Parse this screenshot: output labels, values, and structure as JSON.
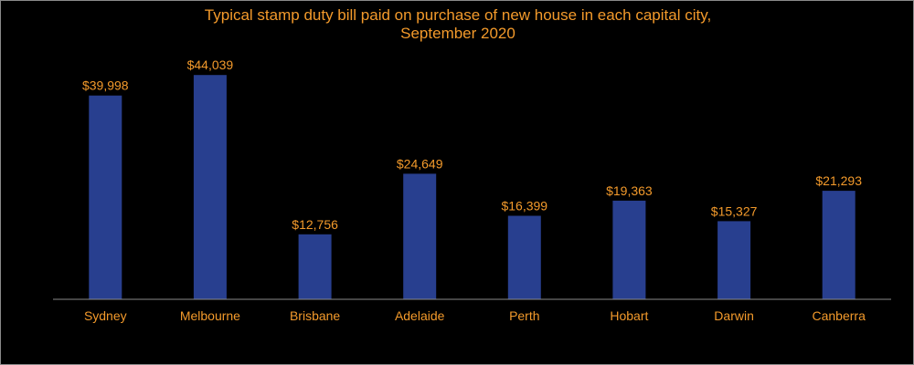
{
  "chart_data": {
    "type": "bar",
    "title_line1": "Typical stamp duty bill paid on purchase of new house in each capital city,",
    "title_line2": "September 2020",
    "categories": [
      "Sydney",
      "Melbourne",
      "Brisbane",
      "Adelaide",
      "Perth",
      "Hobart",
      "Darwin",
      "Canberra"
    ],
    "values": [
      39998,
      44039,
      12756,
      24649,
      16399,
      19363,
      15327,
      21293
    ],
    "data_labels": [
      "$39,998",
      "$44,039",
      "$12,756",
      "$24,649",
      "$16,399",
      "$19,363",
      "$15,327",
      "$21,293"
    ],
    "xlabel": "",
    "ylabel": "",
    "ylim": [
      0,
      45500
    ],
    "grid": false,
    "legend": "none",
    "colors": {
      "bar": "#283f8f",
      "text": "#f39a2b",
      "axis": "#8a8a8a",
      "background": "#000000"
    }
  }
}
